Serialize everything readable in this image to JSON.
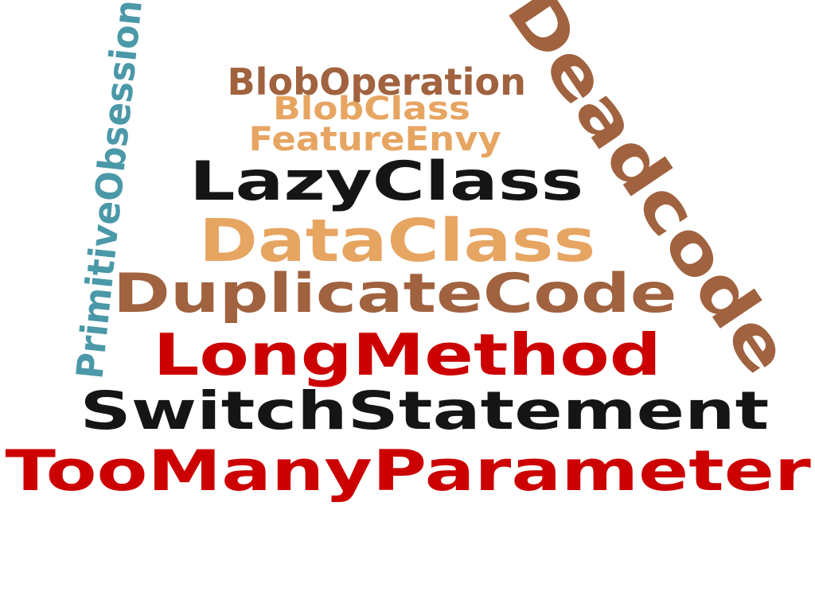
{
  "words": [
    {
      "key": "blob_operation",
      "text": "BlobOperation",
      "color": "#A0623F"
    },
    {
      "key": "blob_class",
      "text": "BlobClass",
      "color": "#E7A562"
    },
    {
      "key": "feature_envy",
      "text": "FeatureEnvy",
      "color": "#E7A562"
    },
    {
      "key": "lazy_class",
      "text": "LazyClass",
      "color": "#151515"
    },
    {
      "key": "data_class",
      "text": "DataClass",
      "color": "#E7A562"
    },
    {
      "key": "duplicate_code",
      "text": "DuplicateCode",
      "color": "#A0623F"
    },
    {
      "key": "long_method",
      "text": "LongMethod",
      "color": "#CC0000"
    },
    {
      "key": "switch_statement",
      "text": "SwitchStatement",
      "color": "#151515"
    },
    {
      "key": "too_many_parameter",
      "text": "TooManyParameter",
      "color": "#CC0000"
    },
    {
      "key": "primitive_obsession",
      "text": "PrimitiveObsession",
      "color": "#4A98A8"
    },
    {
      "key": "dead_code",
      "text": "Deadcode",
      "color": "#A0623F"
    }
  ]
}
